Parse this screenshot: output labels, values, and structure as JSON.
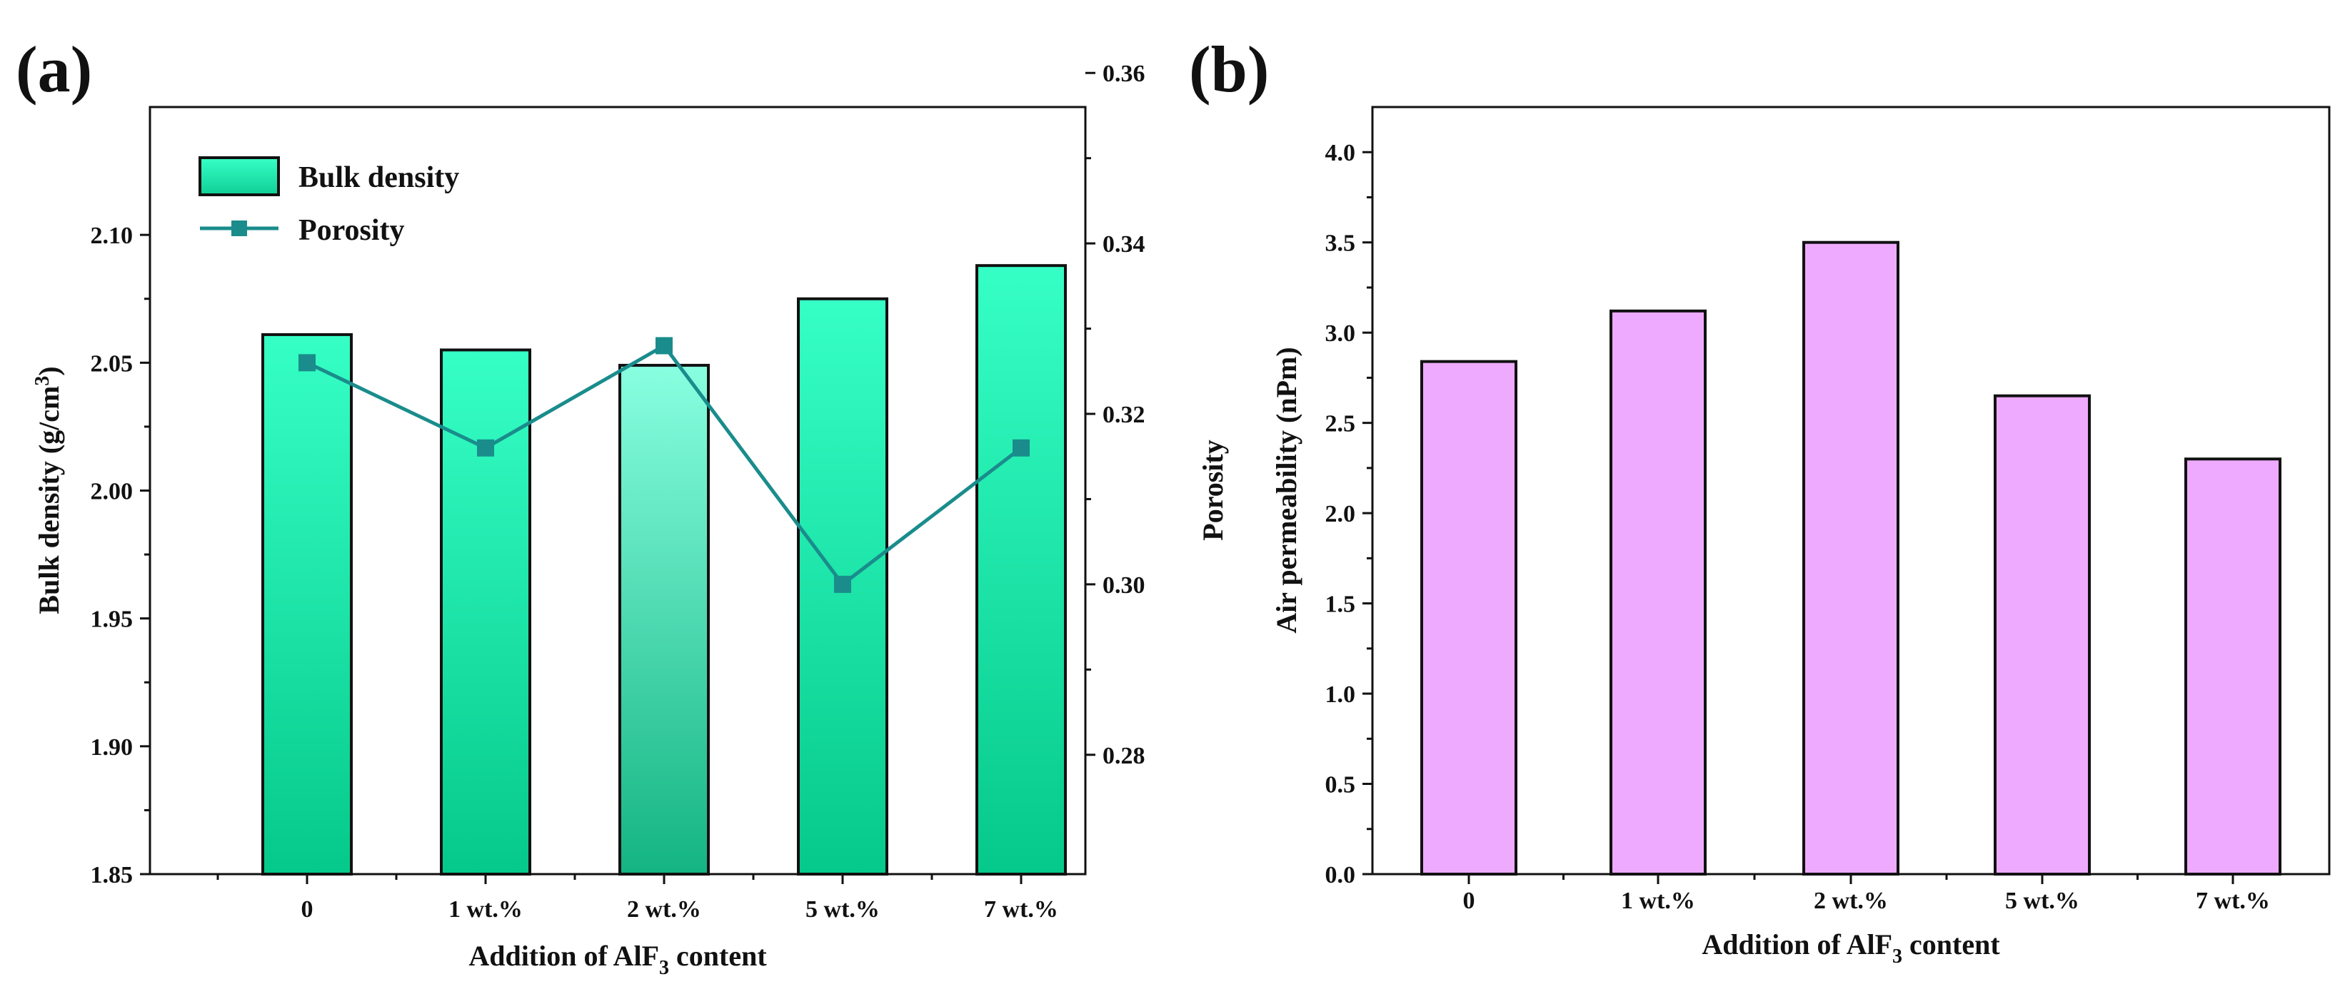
{
  "chart_data": [
    {
      "panel": "(a)",
      "type": "bar",
      "categories": [
        "0",
        "1 wt.%",
        "2 wt.%",
        "5 wt.%",
        "7 wt.%"
      ],
      "series": [
        {
          "name": "Bulk density",
          "type": "bar",
          "axis": "left",
          "values": [
            2.061,
            2.055,
            2.049,
            2.075,
            2.088
          ],
          "color": "#2ee6b0"
        },
        {
          "name": "Porosity",
          "type": "line",
          "axis": "right",
          "values": [
            0.326,
            0.316,
            0.328,
            0.3,
            0.316
          ],
          "color": "#1a8c8c"
        }
      ],
      "xlabel": "Addition of AlF",
      "xlabel_sub": "3",
      "xlabel_rest": " content",
      "ylabel": "Bulk density (g/cm",
      "ylabel_sup": "3",
      "ylabel_end": ")",
      "y2label": "Porosity",
      "ylim": [
        1.85,
        2.15
      ],
      "yticks": [
        1.85,
        1.9,
        1.95,
        2.0,
        2.05,
        2.1
      ],
      "ytick_labels": [
        "1.85",
        "1.90",
        "1.95",
        "2.00",
        "2.05",
        "2.10"
      ],
      "y2lim": [
        0.266,
        0.356
      ],
      "y2ticks": [
        0.28,
        0.3,
        0.32,
        0.34,
        0.36
      ],
      "y2tick_labels": [
        "0.28",
        "0.30",
        "0.32",
        "0.34",
        "0.36"
      ],
      "legend": [
        "Bulk density",
        "Porosity"
      ],
      "legend_position": "top-left"
    },
    {
      "panel": "(b)",
      "type": "bar",
      "categories": [
        "0",
        "1 wt.%",
        "2 wt.%",
        "5 wt.%",
        "7 wt.%"
      ],
      "values": [
        2.84,
        3.12,
        3.5,
        2.65,
        2.3
      ],
      "color": "#eeaaff",
      "xlabel": "Addition of AlF",
      "xlabel_sub": "3",
      "xlabel_rest": " content",
      "ylabel": "Air permeability (nPm)",
      "ylim": [
        0,
        4.25
      ],
      "yticks": [
        0,
        0.5,
        1.0,
        1.5,
        2.0,
        2.5,
        3.0,
        3.5,
        4.0
      ],
      "ytick_labels": [
        "0.0",
        "0.5",
        "1.0",
        "1.5",
        "2.0",
        "2.5",
        "3.0",
        "3.5",
        "4.0"
      ]
    }
  ]
}
